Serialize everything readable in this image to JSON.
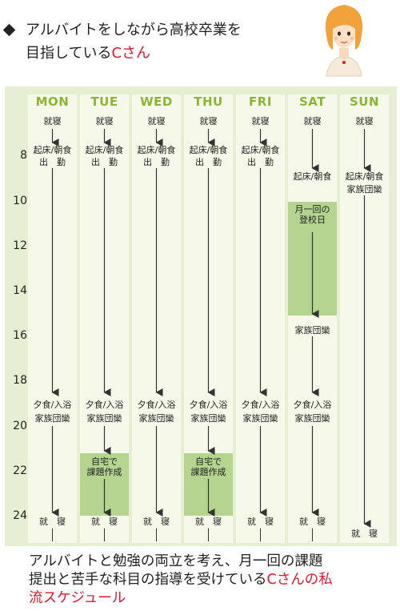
{
  "header": {
    "line1": "アルバイトをしながら高校卒業を",
    "line2_prefix": "目指している",
    "line2_name": "Cさん"
  },
  "days": [
    "MON",
    "TUE",
    "WED",
    "THU",
    "FRI",
    "SAT",
    "SUN"
  ],
  "hours": [
    "8",
    "10",
    "12",
    "14",
    "16",
    "18",
    "20",
    "22",
    "24"
  ],
  "labels": {
    "sleep": "就寝",
    "sleep_wide": "就　寝",
    "wake_breakfast": "起床/朝食",
    "commute": "出　勤",
    "dinner_bath": "夕食/入浴",
    "family_time": "家族団欒",
    "homework_line1": "自宅で",
    "homework_line2": "課題作成",
    "school_line1": "月一回の",
    "school_line2": "登校日"
  },
  "footer": {
    "line1": "アルバイトと勉強の両立を考え、月一回の課題",
    "line2_prefix": "提出と苦手な科目の指導を受けている",
    "line2_red": "Cさんの私",
    "line3_red": "流スケジュール"
  },
  "colors": {
    "accent_red": "#e0182e",
    "day_header_green": "#8cb535",
    "panel_bg": "#e6efd1",
    "column_bg": "#f6f9ea",
    "highlight_green": "#b4d48f"
  }
}
